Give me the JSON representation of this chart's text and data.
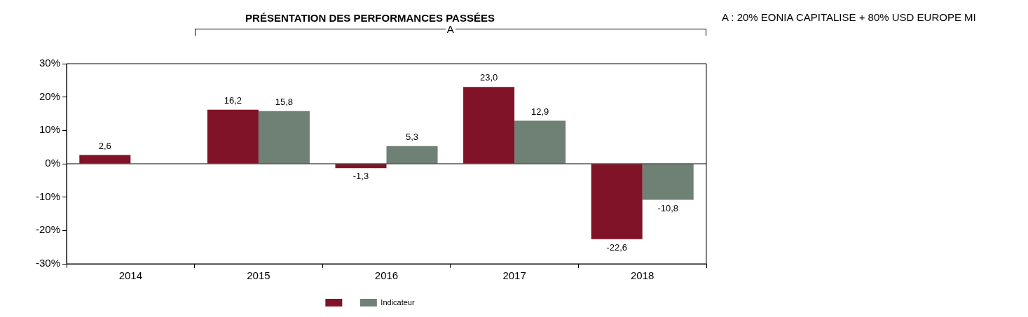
{
  "chart_data": {
    "type": "bar",
    "title": "PRÉSENTATION DES PERFORMANCES PASSÉES",
    "categories": [
      "2014",
      "2015",
      "2016",
      "2017",
      "2018"
    ],
    "series": [
      {
        "color": "#801327",
        "values": [
          2.6,
          16.2,
          -1.3,
          23.0,
          -22.6
        ],
        "value_labels": [
          "2,6",
          "16,2",
          "-1,3",
          "23,0",
          "-22,6"
        ]
      },
      {
        "name": "Indicateur",
        "color": "#6f8075",
        "values": [
          null,
          15.8,
          5.3,
          12.9,
          -10.8
        ],
        "value_labels": [
          null,
          "15,8",
          "5,3",
          "12,9",
          "-10,8"
        ]
      }
    ],
    "ylim": [
      -30,
      30
    ],
    "yticks": [
      {
        "value": -30,
        "label": "-30%"
      },
      {
        "value": -20,
        "label": "-20%"
      },
      {
        "value": -10,
        "label": "-10%"
      },
      {
        "value": 0,
        "label": "0%"
      },
      {
        "value": 10,
        "label": "10%"
      },
      {
        "value": 20,
        "label": "20%"
      },
      {
        "value": 30,
        "label": "30%"
      }
    ],
    "ref_lines": [
      {
        "axis": "y",
        "value": 0
      }
    ],
    "grid": false,
    "legend": "bottom",
    "annotations": [
      "A",
      "A : 20% EONIA CAPITALISE + 80% USD EUROPE MI"
    ]
  }
}
